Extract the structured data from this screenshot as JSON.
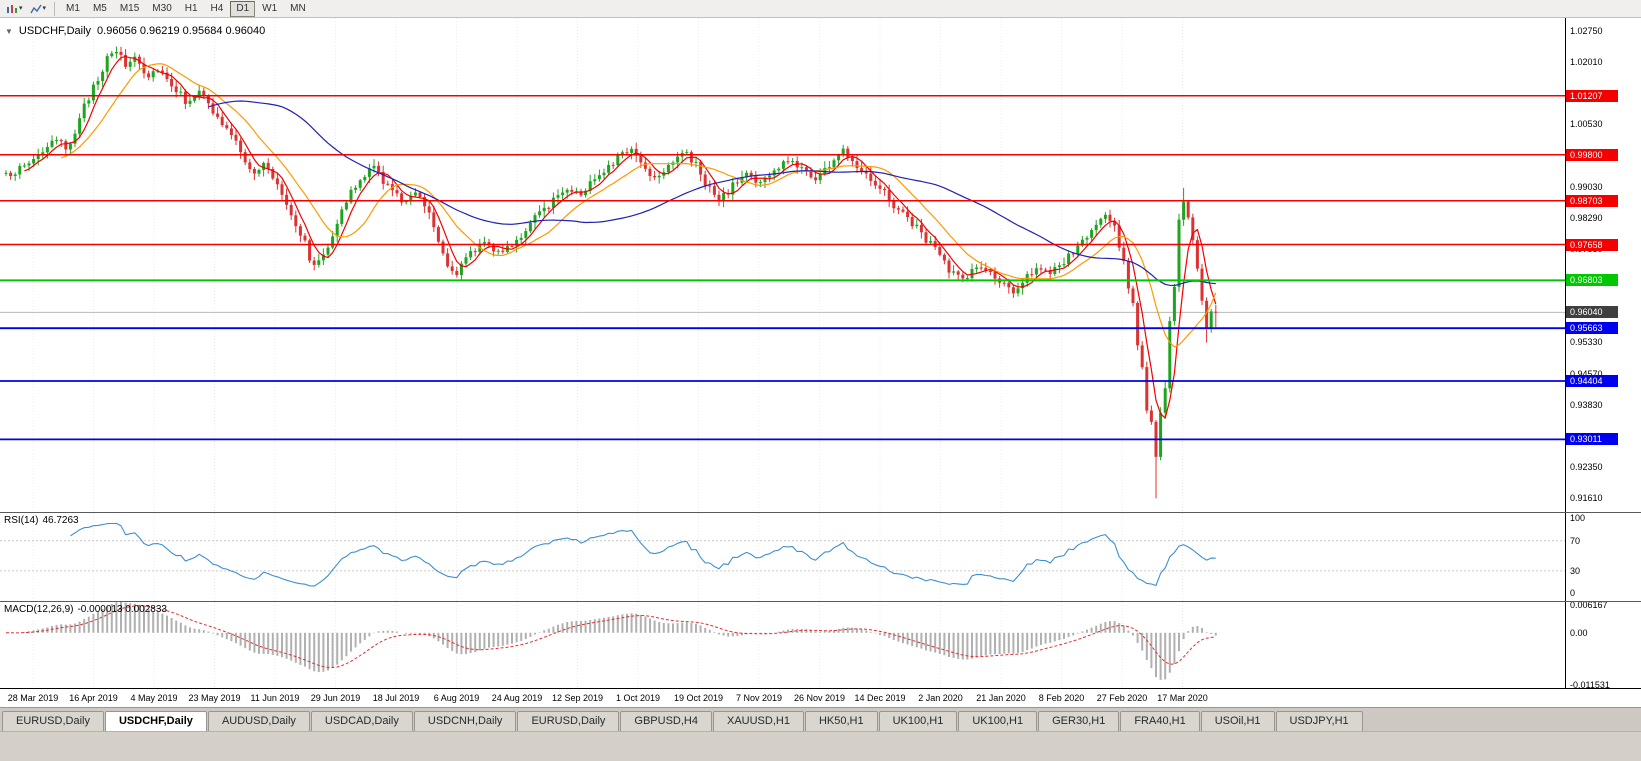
{
  "toolbar": {
    "timeframes": [
      "M1",
      "M5",
      "M15",
      "M30",
      "H1",
      "H4",
      "D1",
      "W1",
      "MN"
    ],
    "active_timeframe": "D1"
  },
  "chart_header": {
    "collapse_arrow": "▼",
    "symbol": "USDCHF,Daily",
    "ohlc": "0.96056 0.96219 0.95684 0.96040"
  },
  "indicators": {
    "rsi": {
      "label": "RSI(14)",
      "value": "46.7263"
    },
    "macd": {
      "label": "MACD(12,26,9)",
      "values": "-0.000013 0.002833"
    }
  },
  "colors": {
    "bull": "#1fa41f",
    "bear": "#dd3232",
    "resistance": "#f40000",
    "pivot": "#00c800",
    "support": "#0000ee",
    "current_price_box": "#3f3f3f",
    "bid_line": "#b8b8b8",
    "rsi_line": "#3d8fd1",
    "macd_bar": "#b0b0b0",
    "macd_signal": "#e03030",
    "ma_fast": "#f40000",
    "ma_medium": "#ff9900",
    "ma_slow": "#2121b4"
  },
  "chart_data": {
    "type": "candlestick",
    "symbol": "USDCHF",
    "timeframe": "Daily",
    "last_quote": {
      "open": 0.96056,
      "high": 0.96219,
      "low": 0.95684,
      "close": 0.9604
    },
    "current_price": 0.9604,
    "price_range": [
      0.9128,
      1.0306
    ],
    "price_axis_ticks": [
      1.0275,
      1.0201,
      1.0053,
      0.9903,
      0.9829,
      0.9755,
      0.9533,
      0.9457,
      0.9383,
      0.9235,
      0.9161
    ],
    "levels": [
      {
        "price": 1.01207,
        "color": "#f40000",
        "type": "resistance"
      },
      {
        "price": 0.998,
        "color": "#f40000",
        "type": "resistance"
      },
      {
        "price": 0.98703,
        "color": "#f40000",
        "type": "resistance"
      },
      {
        "price": 0.97658,
        "color": "#f40000",
        "type": "resistance"
      },
      {
        "price": 0.96803,
        "color": "#00c800",
        "type": "pivot"
      },
      {
        "price": 0.95663,
        "color": "#0000ee",
        "type": "support"
      },
      {
        "price": 0.94404,
        "color": "#0000ee",
        "type": "support"
      },
      {
        "price": 0.93011,
        "color": "#0000ee",
        "type": "support"
      }
    ],
    "candles": 264,
    "close_path_anchors": [
      [
        0,
        0.993
      ],
      [
        4,
        0.9952
      ],
      [
        8,
        0.999
      ],
      [
        11,
        1.0012
      ],
      [
        13,
        0.9996
      ],
      [
        16,
        1.0058
      ],
      [
        19,
        1.0148
      ],
      [
        22,
        1.0205
      ],
      [
        24,
        1.0228
      ],
      [
        26,
        1.0192
      ],
      [
        28,
        1.0215
      ],
      [
        31,
        1.0168
      ],
      [
        33,
        1.0188
      ],
      [
        36,
        1.015
      ],
      [
        39,
        1.0108
      ],
      [
        42,
        1.0128
      ],
      [
        45,
        1.0082
      ],
      [
        48,
        1.0038
      ],
      [
        51,
        0.9992
      ],
      [
        54,
        0.993
      ],
      [
        56,
        0.9958
      ],
      [
        59,
        0.9912
      ],
      [
        62,
        0.9845
      ],
      [
        65,
        0.9768
      ],
      [
        67,
        0.9712
      ],
      [
        69,
        0.9745
      ],
      [
        72,
        0.9822
      ],
      [
        75,
        0.9888
      ],
      [
        78,
        0.9932
      ],
      [
        80,
        0.995
      ],
      [
        83,
        0.9906
      ],
      [
        86,
        0.9868
      ],
      [
        89,
        0.9895
      ],
      [
        92,
        0.9846
      ],
      [
        94,
        0.9786
      ],
      [
        96,
        0.9716
      ],
      [
        98,
        0.97
      ],
      [
        101,
        0.9742
      ],
      [
        104,
        0.9778
      ],
      [
        107,
        0.9744
      ],
      [
        110,
        0.977
      ],
      [
        113,
        0.9796
      ],
      [
        116,
        0.984
      ],
      [
        119,
        0.9874
      ],
      [
        122,
        0.9902
      ],
      [
        125,
        0.9884
      ],
      [
        128,
        0.9926
      ],
      [
        131,
        0.9956
      ],
      [
        134,
        0.998
      ],
      [
        136,
        0.9996
      ],
      [
        138,
        0.9962
      ],
      [
        141,
        0.9926
      ],
      [
        144,
        0.9958
      ],
      [
        147,
        0.9988
      ],
      [
        150,
        0.9954
      ],
      [
        153,
        0.9898
      ],
      [
        155,
        0.9868
      ],
      [
        158,
        0.9906
      ],
      [
        161,
        0.9936
      ],
      [
        164,
        0.9912
      ],
      [
        167,
        0.994
      ],
      [
        170,
        0.9966
      ],
      [
        173,
        0.995
      ],
      [
        176,
        0.9922
      ],
      [
        179,
        0.9956
      ],
      [
        182,
        0.999
      ],
      [
        184,
        0.9968
      ],
      [
        187,
        0.9936
      ],
      [
        190,
        0.9904
      ],
      [
        193,
        0.986
      ],
      [
        196,
        0.983
      ],
      [
        199,
        0.9792
      ],
      [
        202,
        0.9756
      ],
      [
        205,
        0.9702
      ],
      [
        208,
        0.9684
      ],
      [
        211,
        0.9714
      ],
      [
        214,
        0.9696
      ],
      [
        217,
        0.9668
      ],
      [
        219,
        0.9642
      ],
      [
        221,
        0.9684
      ],
      [
        224,
        0.9714
      ],
      [
        227,
        0.9692
      ],
      [
        230,
        0.9724
      ],
      [
        233,
        0.976
      ],
      [
        236,
        0.9798
      ],
      [
        239,
        0.9836
      ],
      [
        241,
        0.98
      ],
      [
        243,
        0.9735
      ],
      [
        245,
        0.9615
      ],
      [
        247,
        0.947
      ],
      [
        248,
        0.939
      ],
      [
        249,
        0.932
      ],
      [
        250,
        0.9255
      ],
      [
        251,
        0.9335
      ],
      [
        252,
        0.9445
      ],
      [
        253,
        0.956
      ],
      [
        254,
        0.97
      ],
      [
        255,
        0.98
      ],
      [
        256,
        0.9866
      ],
      [
        257,
        0.982
      ],
      [
        258,
        0.976
      ],
      [
        259,
        0.97
      ],
      [
        260,
        0.964
      ],
      [
        261,
        0.9575
      ],
      [
        262,
        0.9597
      ],
      [
        263,
        0.9604
      ]
    ],
    "wick_extremes": [
      {
        "i": 24,
        "high": 1.0238
      },
      {
        "i": 250,
        "low": 0.9161
      },
      {
        "i": 256,
        "high": 0.9901
      },
      {
        "i": 261,
        "low": 0.9532
      }
    ],
    "moving_averages": [
      {
        "name": "ma-fast",
        "period": 5,
        "color": "#f40000"
      },
      {
        "name": "ma-medium",
        "period": 13,
        "color": "#ff9900"
      },
      {
        "name": "ma-slow",
        "period": 45,
        "color": "#2121b4"
      }
    ],
    "date_labels": [
      "28 Mar 2019",
      "16 Apr 2019",
      "4 May 2019",
      "23 May 2019",
      "11 Jun 2019",
      "29 Jun 2019",
      "18 Jul 2019",
      "6 Aug 2019",
      "24 Aug 2019",
      "12 Sep 2019",
      "1 Oct 2019",
      "19 Oct 2019",
      "7 Nov 2019",
      "26 Nov 2019",
      "14 Dec 2019",
      "2 Jan 2020",
      "21 Jan 2020",
      "8 Feb 2020",
      "27 Feb 2020",
      "17 Mar 2020"
    ],
    "rsi_panel": {
      "ticks": [
        100,
        70,
        30,
        0
      ],
      "dashed_levels": [
        70,
        30
      ],
      "range": [
        -10,
        107
      ],
      "period": 14
    },
    "macd_panel": {
      "ticks": [
        "0.006167",
        "0.00",
        "-0.011531"
      ],
      "tick_values": [
        0.006167,
        0,
        -0.011531
      ],
      "range": [
        -0.0122,
        0.0068
      ],
      "fast": 12,
      "slow": 26,
      "signal": 9
    }
  },
  "tabs": [
    {
      "label": "EURUSD,Daily",
      "active": false
    },
    {
      "label": "USDCHF,Daily",
      "active": true
    },
    {
      "label": "AUDUSD,Daily",
      "active": false
    },
    {
      "label": "USDCAD,Daily",
      "active": false
    },
    {
      "label": "USDCNH,Daily",
      "active": false
    },
    {
      "label": "EURUSD,Daily",
      "active": false
    },
    {
      "label": "GBPUSD,H4",
      "active": false
    },
    {
      "label": "XAUUSD,H1",
      "active": false
    },
    {
      "label": "HK50,H1",
      "active": false
    },
    {
      "label": "UK100,H1",
      "active": false
    },
    {
      "label": "UK100,H1",
      "active": false
    },
    {
      "label": "GER30,H1",
      "active": false
    },
    {
      "label": "FRA40,H1",
      "active": false
    },
    {
      "label": "USOil,H1",
      "active": false
    },
    {
      "label": "USDJPY,H1",
      "active": false
    }
  ]
}
